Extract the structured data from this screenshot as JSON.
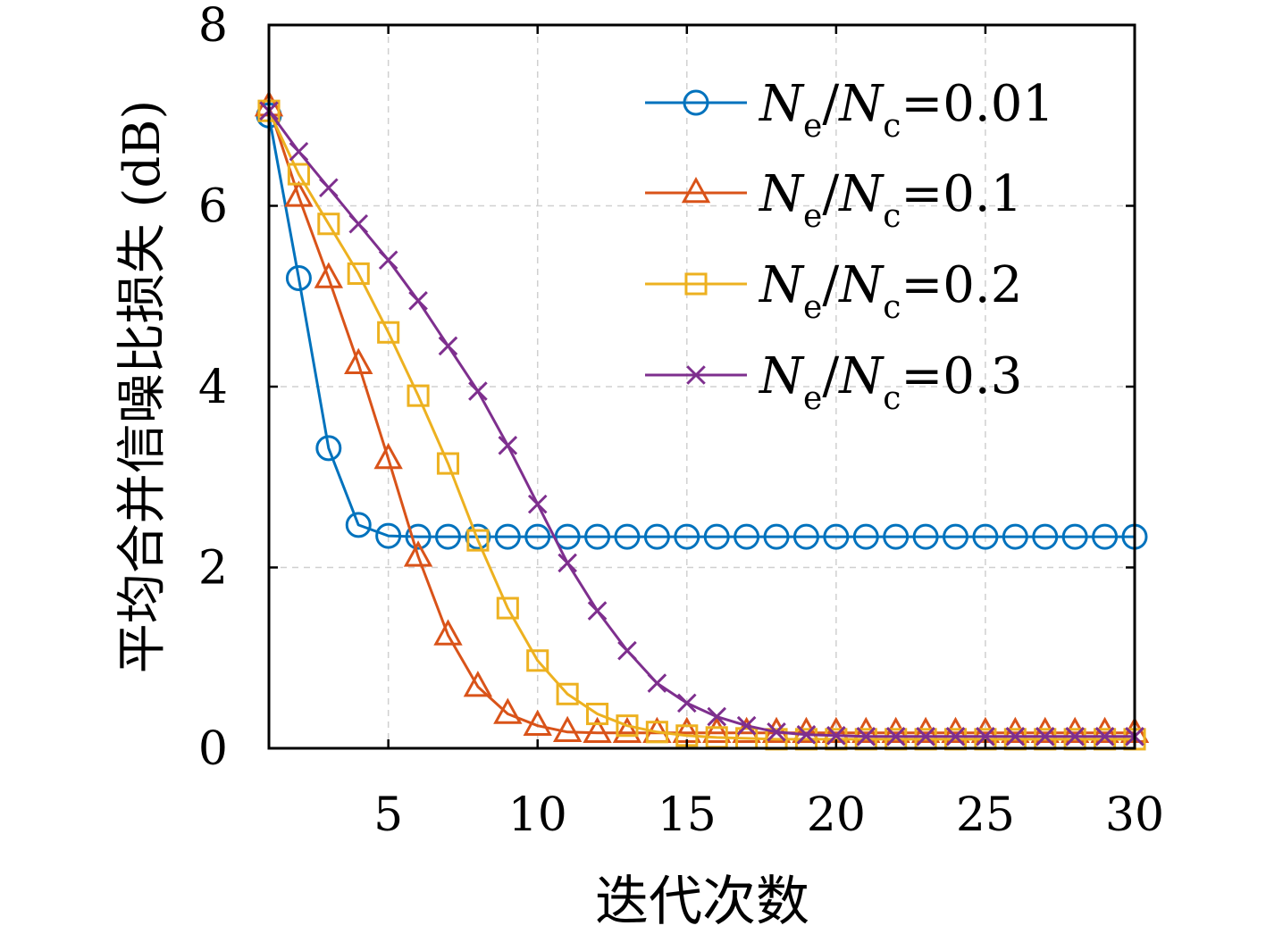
{
  "chart_data": {
    "type": "line",
    "xlabel": "迭代次数",
    "ylabel": "平均合并信噪比损失 (dB)",
    "xlim": [
      1,
      30
    ],
    "ylim": [
      0,
      8
    ],
    "xticks": [
      5,
      10,
      15,
      20,
      25,
      30
    ],
    "yticks": [
      0,
      2,
      4,
      6,
      8
    ],
    "grid": true,
    "legend_position": "top-right",
    "x": [
      1,
      2,
      3,
      4,
      5,
      6,
      7,
      8,
      9,
      10,
      11,
      12,
      13,
      14,
      15,
      16,
      17,
      18,
      19,
      20,
      21,
      22,
      23,
      24,
      25,
      26,
      27,
      28,
      29,
      30
    ],
    "series": [
      {
        "legend": {
          "base": "N",
          "sub1": "e",
          "sep": "/",
          "sub2": "c",
          "eq": "=0.01"
        },
        "marker": "circle",
        "color": "#0072BD",
        "values": [
          7.0,
          5.2,
          3.32,
          2.47,
          2.35,
          2.34,
          2.34,
          2.34,
          2.34,
          2.34,
          2.34,
          2.34,
          2.34,
          2.34,
          2.34,
          2.34,
          2.34,
          2.34,
          2.34,
          2.34,
          2.34,
          2.34,
          2.34,
          2.34,
          2.34,
          2.34,
          2.34,
          2.34,
          2.34,
          2.34
        ]
      },
      {
        "legend": {
          "base": "N",
          "sub1": "e",
          "sep": "/",
          "sub2": "c",
          "eq": "=0.1"
        },
        "marker": "triangle",
        "color": "#D95319",
        "values": [
          7.1,
          6.1,
          5.2,
          4.25,
          3.2,
          2.12,
          1.25,
          0.68,
          0.38,
          0.25,
          0.18,
          0.17,
          0.17,
          0.17,
          0.17,
          0.17,
          0.17,
          0.17,
          0.17,
          0.17,
          0.17,
          0.17,
          0.17,
          0.17,
          0.17,
          0.17,
          0.17,
          0.17,
          0.17,
          0.17
        ]
      },
      {
        "legend": {
          "base": "N",
          "sub1": "e",
          "sep": "/",
          "sub2": "c",
          "eq": "=0.2"
        },
        "marker": "square",
        "color": "#EDB120",
        "values": [
          7.05,
          6.35,
          5.8,
          5.25,
          4.6,
          3.9,
          3.15,
          2.3,
          1.55,
          0.97,
          0.6,
          0.38,
          0.25,
          0.18,
          0.14,
          0.12,
          0.11,
          0.1,
          0.1,
          0.1,
          0.1,
          0.1,
          0.1,
          0.1,
          0.1,
          0.1,
          0.1,
          0.1,
          0.1,
          0.1
        ]
      },
      {
        "legend": {
          "base": "N",
          "sub1": "e",
          "sep": "/",
          "sub2": "c",
          "eq": "=0.3"
        },
        "marker": "x",
        "color": "#7E2F8E",
        "values": [
          7.05,
          6.6,
          6.2,
          5.8,
          5.4,
          4.95,
          4.45,
          3.95,
          3.35,
          2.7,
          2.05,
          1.52,
          1.08,
          0.72,
          0.5,
          0.35,
          0.25,
          0.18,
          0.15,
          0.14,
          0.13,
          0.13,
          0.13,
          0.13,
          0.13,
          0.13,
          0.13,
          0.13,
          0.13,
          0.13
        ]
      }
    ]
  }
}
